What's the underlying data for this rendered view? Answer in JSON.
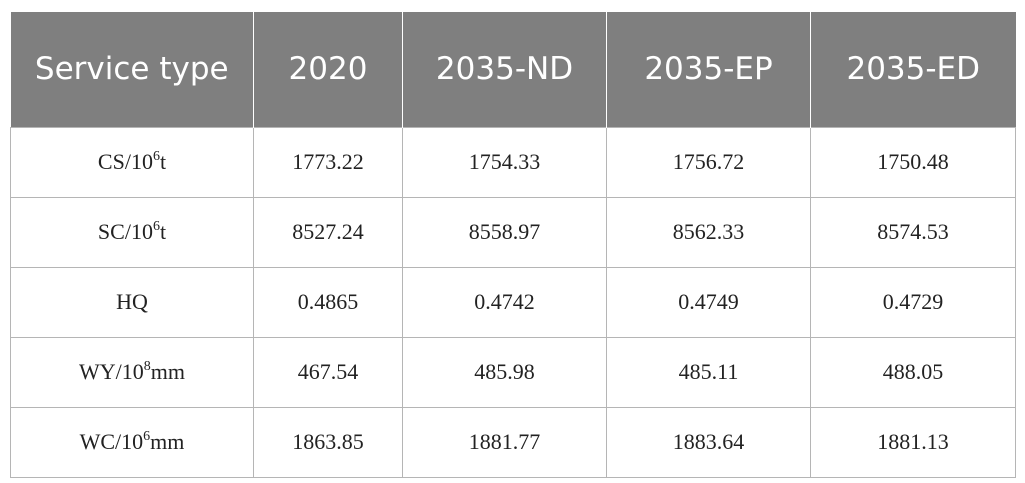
{
  "table": {
    "header": [
      "Service type",
      "2020",
      "2035-ND",
      "2035-EP",
      "2035-ED"
    ],
    "rows": [
      {
        "label": {
          "pre": "CS/10",
          "sup": "6",
          "post": "t"
        },
        "cells": [
          "1773.22",
          "1754.33",
          "1756.72",
          "1750.48"
        ]
      },
      {
        "label": {
          "pre": "SC/10",
          "sup": "6",
          "post": "t"
        },
        "cells": [
          "8527.24",
          "8558.97",
          "8562.33",
          "8574.53"
        ]
      },
      {
        "label": {
          "pre": "HQ",
          "sup": "",
          "post": ""
        },
        "cells": [
          "0.4865",
          "0.4742",
          "0.4749",
          "0.4729"
        ]
      },
      {
        "label": {
          "pre": "WY/10",
          "sup": "8",
          "post": "mm"
        },
        "cells": [
          "467.54",
          "485.98",
          "485.11",
          "488.05"
        ]
      },
      {
        "label": {
          "pre": "WC/10",
          "sup": "6",
          "post": "mm"
        },
        "cells": [
          "1863.85",
          "1881.77",
          "1883.64",
          "1881.13"
        ]
      }
    ]
  }
}
